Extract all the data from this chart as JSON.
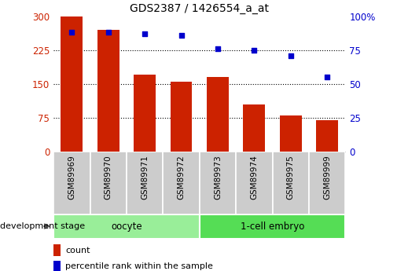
{
  "title": "GDS2387 / 1426554_a_at",
  "samples": [
    "GSM89969",
    "GSM89970",
    "GSM89971",
    "GSM89972",
    "GSM89973",
    "GSM89974",
    "GSM89975",
    "GSM89999"
  ],
  "counts": [
    300,
    270,
    170,
    155,
    165,
    105,
    80,
    70
  ],
  "percentile": [
    88,
    88,
    87,
    86,
    76,
    75,
    71,
    55
  ],
  "bar_color": "#cc2200",
  "dot_color": "#0000cc",
  "left_yticks": [
    0,
    75,
    150,
    225,
    300
  ],
  "right_yticks": [
    0,
    25,
    50,
    75,
    100
  ],
  "ylim_left": [
    0,
    300
  ],
  "ylim_right": [
    0,
    100
  ],
  "groups": [
    {
      "label": "oocyte",
      "indices": [
        0,
        1,
        2,
        3
      ],
      "color": "#99ee99"
    },
    {
      "label": "1-cell embryo",
      "indices": [
        4,
        5,
        6,
        7
      ],
      "color": "#55dd55"
    }
  ],
  "group_label": "development stage",
  "legend_count": "count",
  "legend_percentile": "percentile rank within the sample",
  "title_fontsize": 10,
  "axis_label_color_left": "#cc2200",
  "axis_label_color_right": "#0000cc",
  "bg_color": "#ffffff",
  "plot_bg_color": "#ffffff",
  "grid_color": "#000000",
  "sample_bg": "#cccccc"
}
